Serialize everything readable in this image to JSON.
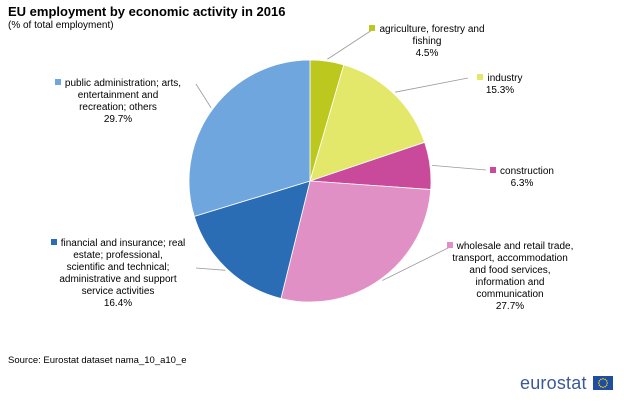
{
  "chart_data": {
    "type": "pie",
    "title": "EU employment by economic activity in 2016",
    "subtitle": "(% of total employment)",
    "unit": "%",
    "slices": [
      {
        "lines": [
          "agriculture, forestry and",
          "fishing"
        ],
        "value_label": "4.5%",
        "value": 4.5,
        "color": "#bdc81e"
      },
      {
        "lines": [
          "industry"
        ],
        "value_label": "15.3%",
        "value": 15.3,
        "color": "#e3e86a"
      },
      {
        "lines": [
          "construction"
        ],
        "value_label": "6.3%",
        "value": 6.3,
        "color": "#c94a9a"
      },
      {
        "lines": [
          "wholesale and retail trade,",
          "transport, accommodation",
          "and food services,",
          "information and",
          "communication"
        ],
        "value_label": "27.7%",
        "value": 27.7,
        "color": "#e090c4"
      },
      {
        "lines": [
          "financial and insurance; real",
          "estate; professional,",
          "scientific and technical;",
          "administrative and support",
          "service activities"
        ],
        "value_label": "16.4%",
        "value": 16.4,
        "color": "#2a6db5"
      },
      {
        "lines": [
          "public administration; arts,",
          "entertainment and",
          "recreation; others"
        ],
        "value_label": "29.7%",
        "value": 29.7,
        "color": "#70a6de"
      }
    ]
  },
  "footer": {
    "source": "Source: Eurostat dataset nama_10_a10_e",
    "brand": "eurostat"
  },
  "colors": {
    "flag_blue": "#1f4da1",
    "flag_star": "#ffdd00",
    "leader": "#9a9a9a"
  }
}
